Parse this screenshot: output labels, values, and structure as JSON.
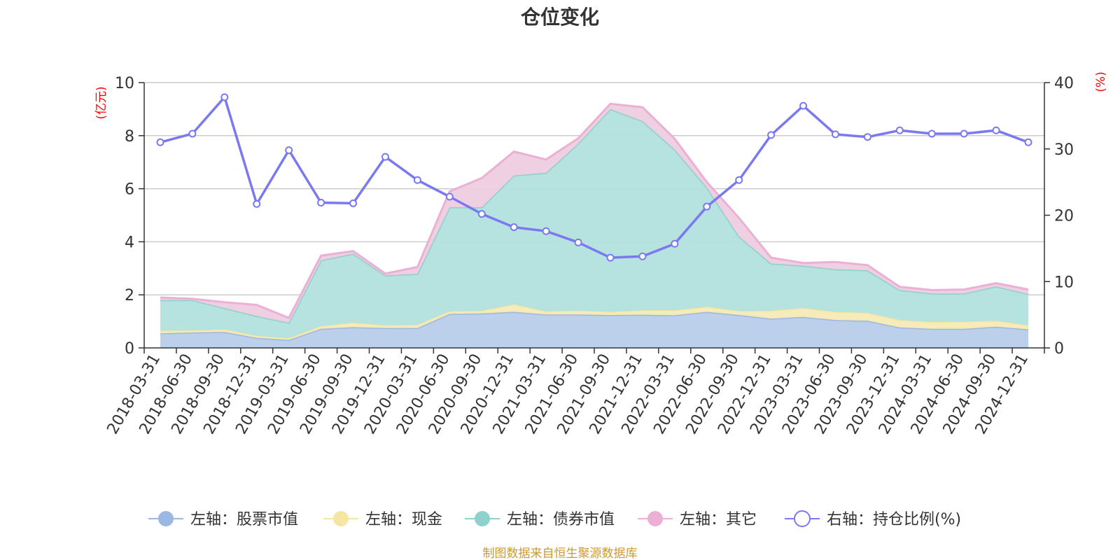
{
  "chart_data": {
    "type": "area",
    "title": "仓位变化",
    "left_axis_unit": "(亿元)",
    "right_axis_unit": "(%)",
    "unit_color": "#ff0000",
    "left_ylim": [
      0,
      10
    ],
    "left_ticks": [
      "0",
      "2",
      "4",
      "6",
      "8",
      "10"
    ],
    "right_ylim": [
      0,
      40
    ],
    "right_ticks": [
      "0",
      "10",
      "20",
      "30",
      "40"
    ],
    "grid": true,
    "legend_position": "bottom",
    "categories": [
      "2018-03-31",
      "2018-06-30",
      "2018-09-30",
      "2018-12-31",
      "2019-03-31",
      "2019-06-30",
      "2019-09-30",
      "2019-12-31",
      "2020-03-31",
      "2020-06-30",
      "2020-09-30",
      "2020-12-31",
      "2021-03-31",
      "2021-06-30",
      "2021-09-30",
      "2021-12-31",
      "2022-03-31",
      "2022-06-30",
      "2022-09-30",
      "2022-12-31",
      "2023-03-31",
      "2023-06-30",
      "2023-09-30",
      "2023-12-31",
      "2024-03-31",
      "2024-06-30",
      "2024-09-30",
      "2024-12-31"
    ],
    "series": [
      {
        "name": "左轴：股票市值",
        "axis": "left",
        "kind": "stacked-area",
        "color": "#9bb8e3",
        "fill": "#b8cdea",
        "values": [
          0.55,
          0.58,
          0.6,
          0.38,
          0.3,
          0.72,
          0.78,
          0.75,
          0.75,
          1.28,
          1.3,
          1.36,
          1.26,
          1.26,
          1.24,
          1.25,
          1.23,
          1.36,
          1.24,
          1.1,
          1.17,
          1.05,
          1.02,
          0.77,
          0.72,
          0.72,
          0.8,
          0.7
        ]
      },
      {
        "name": "左轴：现金",
        "axis": "left",
        "kind": "stacked-area",
        "color": "#f5e6a4",
        "fill": "#f6eab5",
        "values": [
          0.1,
          0.08,
          0.1,
          0.07,
          0.07,
          0.1,
          0.17,
          0.1,
          0.12,
          0.1,
          0.1,
          0.28,
          0.12,
          0.15,
          0.12,
          0.17,
          0.19,
          0.19,
          0.15,
          0.3,
          0.33,
          0.31,
          0.3,
          0.28,
          0.26,
          0.27,
          0.22,
          0.15
        ]
      },
      {
        "name": "左轴：债券市值",
        "axis": "left",
        "kind": "stacked-area",
        "color": "#8fd1cd",
        "fill": "#b2e0de",
        "values": [
          1.15,
          1.14,
          0.8,
          0.75,
          0.58,
          2.48,
          2.6,
          1.88,
          1.92,
          3.92,
          3.9,
          4.86,
          5.22,
          6.29,
          7.64,
          7.13,
          6.06,
          4.5,
          2.81,
          1.78,
          1.6,
          1.6,
          1.6,
          1.13,
          1.07,
          1.06,
          1.3,
          1.18
        ]
      },
      {
        "name": "左轴：其它",
        "axis": "left",
        "kind": "stacked-area",
        "color": "#ebb0d3",
        "fill": "#eecde2",
        "values": [
          0.1,
          0.05,
          0.22,
          0.42,
          0.18,
          0.18,
          0.1,
          0.07,
          0.26,
          0.6,
          1.1,
          0.9,
          0.5,
          0.2,
          0.2,
          0.52,
          0.4,
          0.2,
          0.7,
          0.22,
          0.1,
          0.28,
          0.2,
          0.12,
          0.13,
          0.15,
          0.12,
          0.17
        ]
      },
      {
        "name": "右轴：持仓比例(%)",
        "axis": "right",
        "kind": "line",
        "color": "#7b79f0",
        "values": [
          31.0,
          32.3,
          37.8,
          21.7,
          29.8,
          21.9,
          21.8,
          28.8,
          25.3,
          22.8,
          20.2,
          18.2,
          17.6,
          15.9,
          13.6,
          13.8,
          15.7,
          21.3,
          25.3,
          32.1,
          36.5,
          32.2,
          31.8,
          32.8,
          32.3,
          32.3,
          32.8,
          31.0
        ]
      }
    ],
    "source_text": "制图数据来自恒生聚源数据库",
    "source_color": "#cc9a2e"
  }
}
